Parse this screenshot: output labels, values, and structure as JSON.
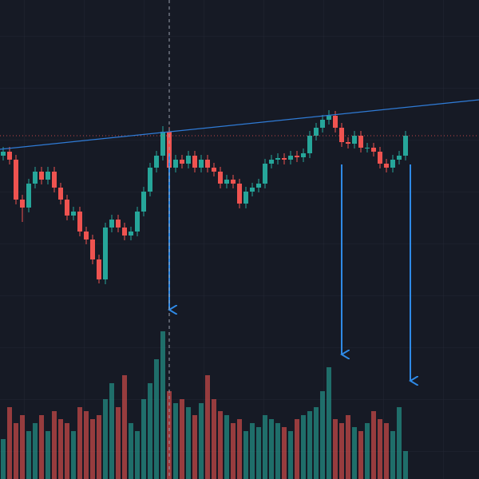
{
  "chart_data": {
    "type": "candlestick",
    "up_color": "#26a69a",
    "down_color": "#ef5350",
    "ylim": [
      0,
      600
    ],
    "volume_ylim": [
      0,
      600
    ],
    "open": [
      405,
      410,
      400,
      350,
      340,
      370,
      385,
      375,
      385,
      365,
      350,
      330,
      335,
      310,
      300,
      275,
      250,
      315,
      325,
      315,
      305,
      310,
      335,
      360,
      390,
      405,
      435,
      390,
      400,
      395,
      405,
      390,
      400,
      390,
      385,
      370,
      375,
      370,
      345,
      360,
      365,
      370,
      395,
      400,
      402,
      400,
      405,
      403,
      408,
      430,
      440,
      450,
      455,
      440,
      422,
      420,
      430,
      415,
      415,
      410,
      395,
      390,
      400,
      405
    ],
    "close": [
      410,
      400,
      350,
      340,
      370,
      385,
      375,
      385,
      365,
      350,
      330,
      335,
      310,
      300,
      275,
      250,
      315,
      325,
      315,
      305,
      310,
      335,
      360,
      390,
      405,
      435,
      390,
      400,
      395,
      405,
      390,
      400,
      390,
      385,
      370,
      375,
      370,
      345,
      360,
      365,
      370,
      395,
      400,
      402,
      400,
      405,
      403,
      408,
      430,
      440,
      450,
      455,
      440,
      422,
      420,
      430,
      415,
      415,
      410,
      395,
      390,
      400,
      405,
      430
    ],
    "high": [
      416,
      416,
      406,
      356,
      376,
      391,
      391,
      391,
      391,
      371,
      356,
      341,
      341,
      316,
      306,
      281,
      321,
      331,
      331,
      321,
      316,
      341,
      366,
      396,
      411,
      442,
      441,
      406,
      406,
      411,
      411,
      406,
      406,
      396,
      391,
      381,
      381,
      376,
      366,
      371,
      376,
      401,
      406,
      408,
      408,
      411,
      411,
      414,
      436,
      446,
      456,
      462,
      461,
      446,
      428,
      436,
      436,
      421,
      421,
      416,
      401,
      406,
      411,
      436
    ],
    "low": [
      399,
      394,
      344,
      322,
      334,
      364,
      369,
      369,
      359,
      344,
      324,
      324,
      304,
      294,
      269,
      245,
      244,
      309,
      309,
      299,
      299,
      304,
      329,
      354,
      384,
      399,
      384,
      384,
      389,
      389,
      384,
      384,
      384,
      379,
      364,
      364,
      364,
      339,
      339,
      354,
      359,
      364,
      389,
      394,
      394,
      394,
      397,
      397,
      402,
      424,
      434,
      444,
      434,
      416,
      414,
      414,
      409,
      409,
      404,
      389,
      384,
      384,
      394,
      399
    ],
    "volume": [
      50,
      90,
      70,
      80,
      60,
      70,
      80,
      60,
      85,
      75,
      70,
      60,
      90,
      85,
      75,
      80,
      100,
      120,
      90,
      130,
      70,
      60,
      100,
      120,
      150,
      185,
      110,
      95,
      100,
      90,
      80,
      95,
      130,
      100,
      85,
      80,
      70,
      75,
      60,
      70,
      65,
      80,
      75,
      70,
      65,
      60,
      75,
      80,
      85,
      90,
      110,
      140,
      75,
      70,
      80,
      65,
      60,
      70,
      85,
      75,
      70,
      60,
      90,
      35
    ],
    "crosshair_index": 26,
    "trendline": {
      "index": [
        -0.5,
        74.5
      ],
      "values": [
        413,
        475
      ],
      "color": "#2f7bd6"
    }
  }
}
